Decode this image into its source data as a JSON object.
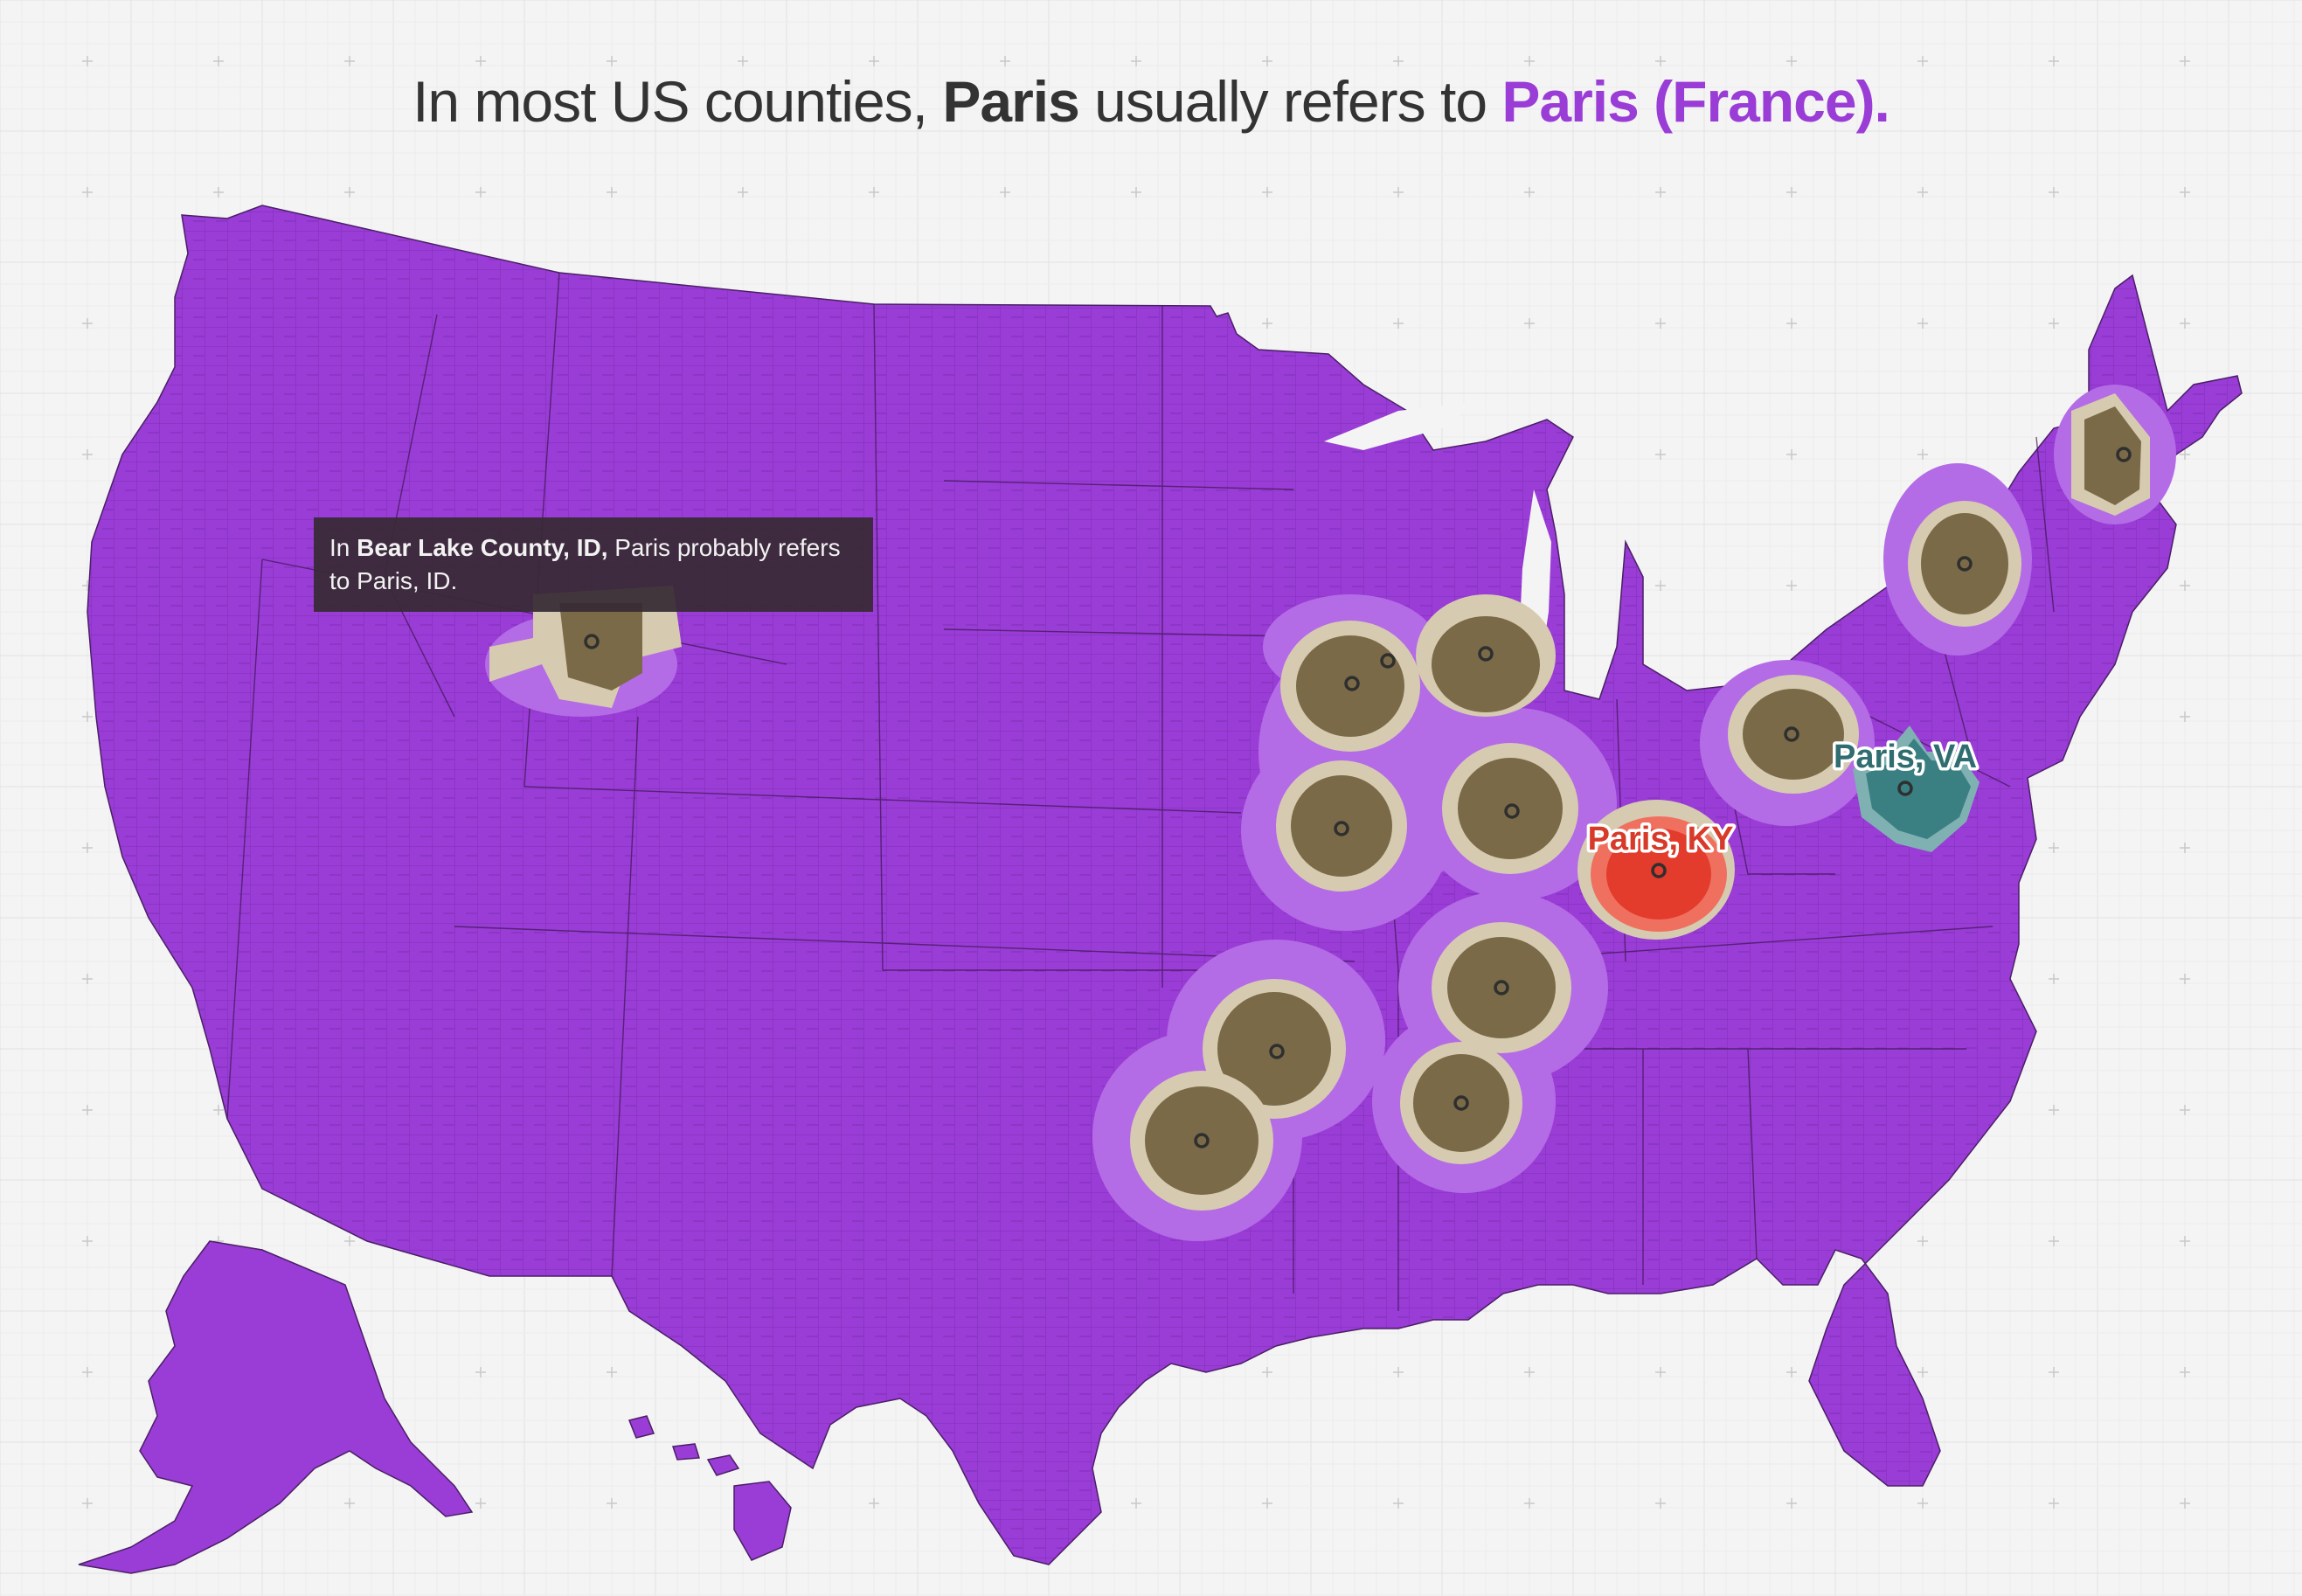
{
  "title": {
    "prefix": "In most US counties,",
    "keyword": "Paris",
    "middle": "usually refers to",
    "highlight": "Paris (France)."
  },
  "tooltip": {
    "prefix": "In",
    "county": "Bear Lake County, ID,",
    "suffix": "Paris probably refers to Paris, ID."
  },
  "map_labels": {
    "ky": "Paris, KY",
    "va": "Paris, VA"
  },
  "colors": {
    "france": "#9a3cd6",
    "france_light": "#b46be6",
    "us_paris_dark": "#7a6a48",
    "us_paris_mid": "#a2936f",
    "us_paris_light": "#d6cbb0",
    "ky": "#e33b2c",
    "va": "#3a7f82"
  }
}
